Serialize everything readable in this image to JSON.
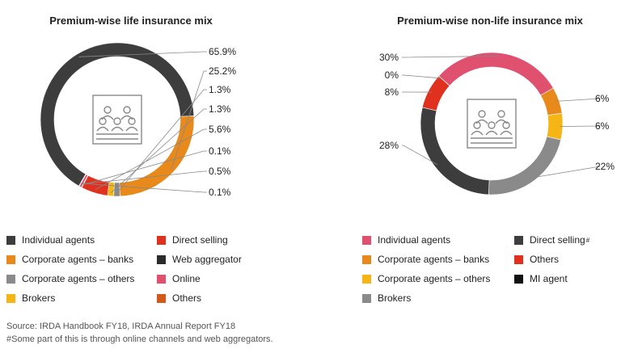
{
  "colors": {
    "individual_dark": "#3d3d3d",
    "corporate_banks": "#e8891c",
    "corporate_others": "#8a8a8a",
    "brokers": "#f5b515",
    "direct_selling_red": "#e0301e",
    "web_aggregator": "#2b2b2b",
    "online": "#e0506f",
    "others_orange": "#d2581c",
    "individual_pink": "#e0506f",
    "mi_agent": "#111111",
    "leader": "#888888"
  },
  "icon": "audience-seats-icon",
  "chart_data": [
    {
      "type": "pie",
      "title": "Premium-wise life insurance mix",
      "labels": [
        "Individual agents",
        "Corporate agents – banks",
        "Corporate agents – others",
        "Brokers",
        "Direct selling",
        "Web aggregator",
        "Online",
        "Others"
      ],
      "values": [
        65.9,
        25.2,
        1.3,
        1.3,
        5.6,
        0.1,
        0.5,
        0.1
      ],
      "value_labels": [
        "65.9%",
        "25.2%",
        "1.3%",
        "1.3%",
        "5.6%",
        "0.1%",
        "0.5%",
        "0.1%"
      ],
      "legend": [
        {
          "label": "Individual agents",
          "color": "#3d3d3d"
        },
        {
          "label": "Corporate agents – banks",
          "color": "#e8891c"
        },
        {
          "label": "Corporate agents – others",
          "color": "#8a8a8a"
        },
        {
          "label": "Brokers",
          "color": "#f5b515"
        },
        {
          "label": "Direct selling",
          "color": "#e0301e"
        },
        {
          "label": "Web aggregator",
          "color": "#2b2b2b"
        },
        {
          "label": "Online",
          "color": "#e0506f"
        },
        {
          "label": "Others",
          "color": "#d2581c"
        }
      ],
      "legend_position": "bottom"
    },
    {
      "type": "pie",
      "title": "Premium-wise non-life insurance mix",
      "labels": [
        "Individual agents",
        "Corporate agents – banks",
        "Corporate agents – others",
        "Brokers",
        "Direct selling",
        "Others",
        "MI agent"
      ],
      "values": [
        30,
        6,
        6,
        22,
        28,
        8,
        0
      ],
      "value_labels": [
        "30%",
        "6%",
        "6%",
        "22%",
        "28%",
        "8%",
        "0%"
      ],
      "legend": [
        {
          "label": "Individual agents",
          "color": "#e0506f"
        },
        {
          "label": "Corporate agents – banks",
          "color": "#e8891c"
        },
        {
          "label": "Corporate agents – others",
          "color": "#f5b515"
        },
        {
          "label": "Brokers",
          "color": "#8a8a8a"
        },
        {
          "label": "Direct selling",
          "color": "#3d3d3d",
          "sup": "#"
        },
        {
          "label": "Others",
          "color": "#e0301e"
        },
        {
          "label": "MI agent",
          "color": "#111111"
        }
      ],
      "legend_position": "bottom"
    }
  ],
  "footer": {
    "source": "Source: IRDA Handbook FY18, IRDA Annual Report FY18",
    "note": "#Some part of this is through online channels and web aggregators."
  }
}
